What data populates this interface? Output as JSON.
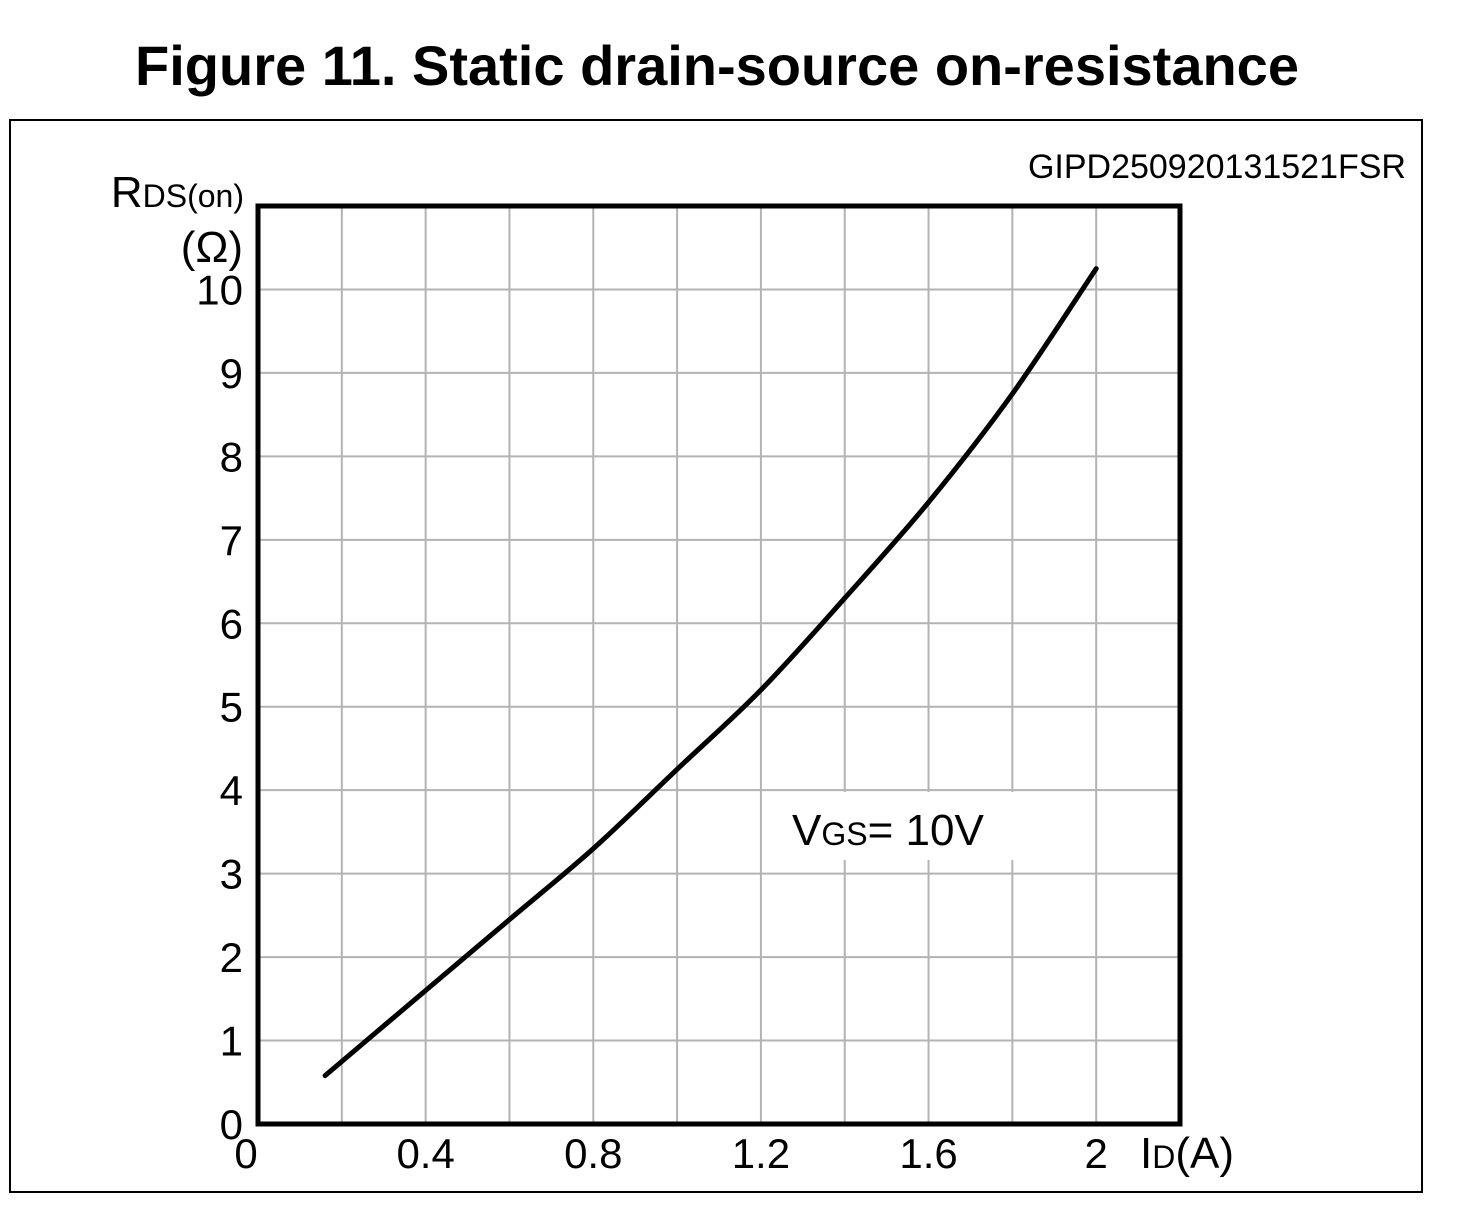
{
  "figure": {
    "title": "Figure 11. Static drain-source on-resistance",
    "code": "GIPD250920131521FSR"
  },
  "chart_data": {
    "type": "line",
    "title": "Figure 11. Static drain-source on-resistance",
    "xlabel": {
      "main": "I",
      "sub": "D",
      "unit": "(A)"
    },
    "ylabel": {
      "main": "R",
      "sub": "DS(on)",
      "unit": "(Ω)"
    },
    "xlim": [
      0,
      2.2
    ],
    "ylim": [
      0,
      11
    ],
    "x_major_ticks": [
      {
        "value": 0,
        "label": "0"
      },
      {
        "value": 0.4,
        "label": "0.4"
      },
      {
        "value": 0.8,
        "label": "0.8"
      },
      {
        "value": 1.2,
        "label": "1.2"
      },
      {
        "value": 1.6,
        "label": "1.6"
      },
      {
        "value": 2.0,
        "label": "2"
      }
    ],
    "x_grid_step": 0.2,
    "y_ticks": [
      {
        "value": 0,
        "label": "0"
      },
      {
        "value": 1,
        "label": "1"
      },
      {
        "value": 2,
        "label": "2"
      },
      {
        "value": 3,
        "label": "3"
      },
      {
        "value": 4,
        "label": "4"
      },
      {
        "value": 5,
        "label": "5"
      },
      {
        "value": 6,
        "label": "6"
      },
      {
        "value": 7,
        "label": "7"
      },
      {
        "value": 8,
        "label": "8"
      },
      {
        "value": 9,
        "label": "9"
      },
      {
        "value": 10,
        "label": "10"
      }
    ],
    "grid": true,
    "annotation": {
      "main": "V",
      "sub": "GS",
      "text": "= 10V"
    },
    "series": [
      {
        "x": [
          0.16,
          0.4,
          0.6,
          0.8,
          1.0,
          1.2,
          1.4,
          1.6,
          1.8,
          2.0
        ],
        "y": [
          0.58,
          1.6,
          2.45,
          3.3,
          4.25,
          5.2,
          6.3,
          7.45,
          8.75,
          10.25
        ]
      }
    ],
    "colors": {
      "line": "#000000",
      "grid": "#b3b3b3",
      "frame": "#000000"
    }
  }
}
